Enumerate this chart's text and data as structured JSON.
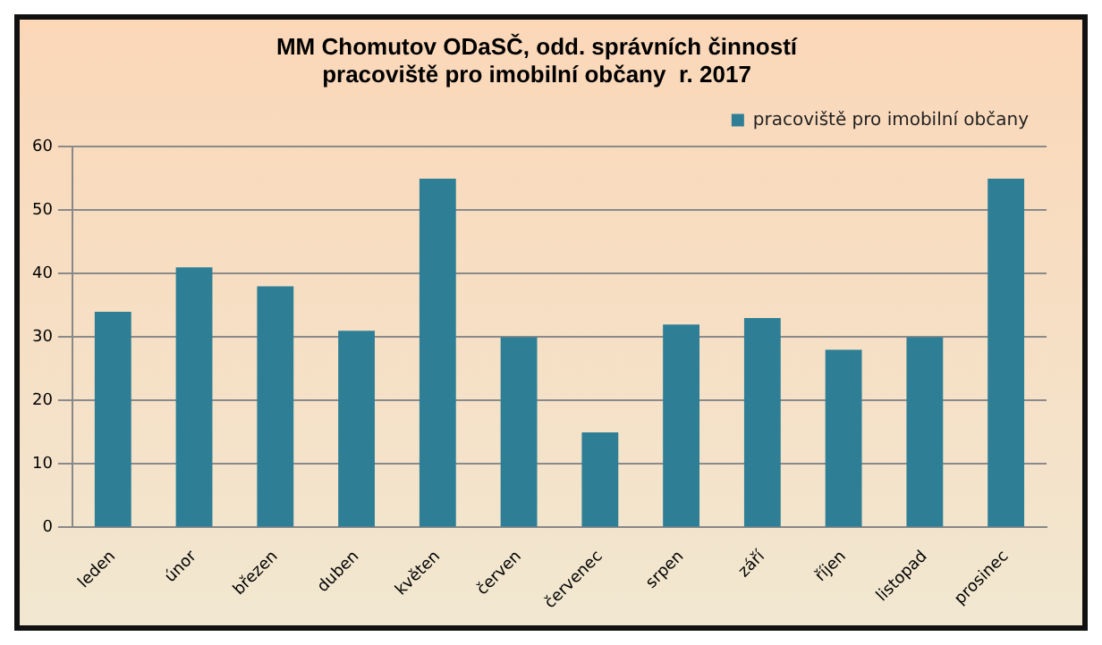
{
  "chart_data": {
    "type": "bar",
    "title": [
      "MM Chomutov ODaSČ, odd. správních činností",
      "pracoviště pro imobilní občany  r. 2017"
    ],
    "categories": [
      "leden",
      "únor",
      "březen",
      "duben",
      "květen",
      "červen",
      "červenec",
      "srpen",
      "září",
      "říjen",
      "listopad",
      "prosinec"
    ],
    "series": [
      {
        "name": "pracoviště pro imobilní občany",
        "color": "#2e7f96",
        "values": [
          34,
          41,
          38,
          31,
          55,
          30,
          15,
          32,
          33,
          28,
          30,
          55
        ]
      }
    ],
    "ylim": [
      0,
      60
    ],
    "yticks": [
      0,
      10,
      20,
      30,
      40,
      50,
      60
    ],
    "grid": "y",
    "legend": "top right"
  }
}
